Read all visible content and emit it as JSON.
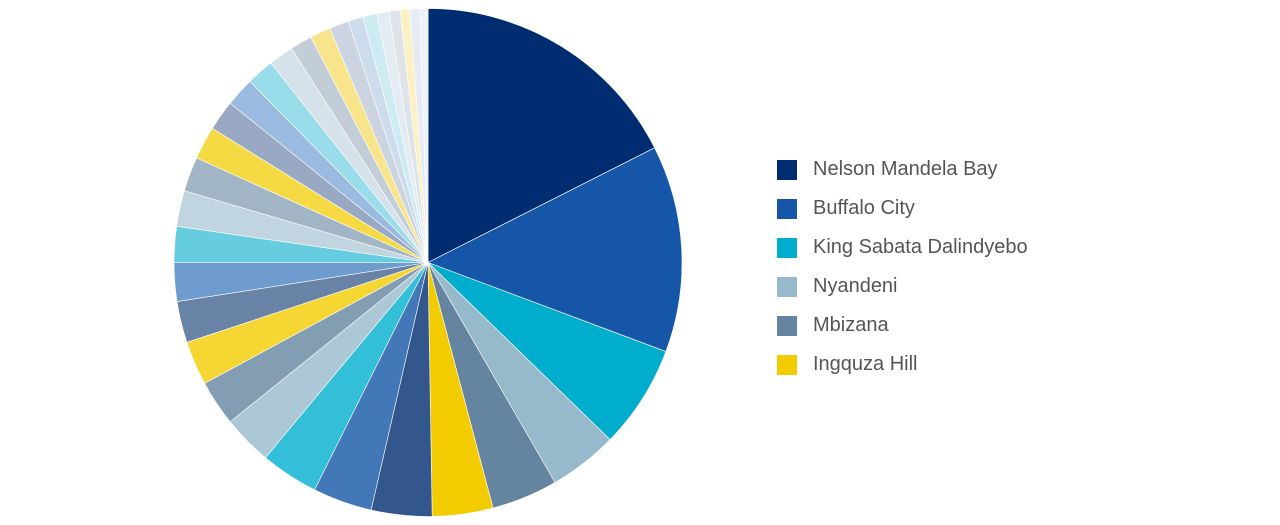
{
  "chart_data": {
    "type": "pie",
    "title": "",
    "legend_position": "right",
    "slices": [
      {
        "name": "Nelson Mandela Bay",
        "value": 20.0,
        "color": "#002d72"
      },
      {
        "name": "Buffalo City",
        "value": 15.0,
        "color": "#1656a8"
      },
      {
        "name": "King Sabata Dalindyebo",
        "value": 7.5,
        "color": "#00adcc"
      },
      {
        "name": "Nyandeni",
        "value": 5.0,
        "color": "#97b9cc"
      },
      {
        "name": "Mbizana",
        "value": 4.8,
        "color": "#64849f"
      },
      {
        "name": "Ingquza Hill",
        "value": 4.4,
        "color": "#f2cc00"
      },
      {
        "value": 4.4,
        "color": "#33578c"
      },
      {
        "value": 4.3,
        "color": "#4277b8"
      },
      {
        "value": 4.2,
        "color": "#33bfd7"
      },
      {
        "value": 3.6,
        "color": "#acc7d6"
      },
      {
        "value": 3.3,
        "color": "#839db2"
      },
      {
        "value": 3.2,
        "color": "#f5d633"
      },
      {
        "value": 3.0,
        "color": "#6883a6"
      },
      {
        "value": 2.8,
        "color": "#6e9ccf"
      },
      {
        "value": 2.6,
        "color": "#66cde0"
      },
      {
        "value": 2.6,
        "color": "#c1d5e0"
      },
      {
        "value": 2.5,
        "color": "#a2b5c5"
      },
      {
        "value": 2.4,
        "color": "#f5da44"
      },
      {
        "value": 2.2,
        "color": "#99a9c3"
      },
      {
        "value": 2.1,
        "color": "#9abadf"
      },
      {
        "value": 2.0,
        "color": "#99dcea"
      },
      {
        "value": 1.8,
        "color": "#d5e2ea"
      },
      {
        "value": 1.6,
        "color": "#c2cdd8"
      },
      {
        "value": 1.5,
        "color": "#f8e58b"
      },
      {
        "value": 1.4,
        "color": "#ccd4e2"
      },
      {
        "value": 1.1,
        "color": "#cddceb"
      },
      {
        "value": 1.0,
        "color": "#ccebf2"
      },
      {
        "value": 0.9,
        "color": "#e3ecf2"
      },
      {
        "value": 0.8,
        "color": "#dee3ea"
      },
      {
        "value": 0.7,
        "color": "#fcf1c2"
      },
      {
        "value": 0.7,
        "color": "#e6ecf5"
      },
      {
        "value": 0.6,
        "color": "#edf2f7"
      }
    ]
  }
}
